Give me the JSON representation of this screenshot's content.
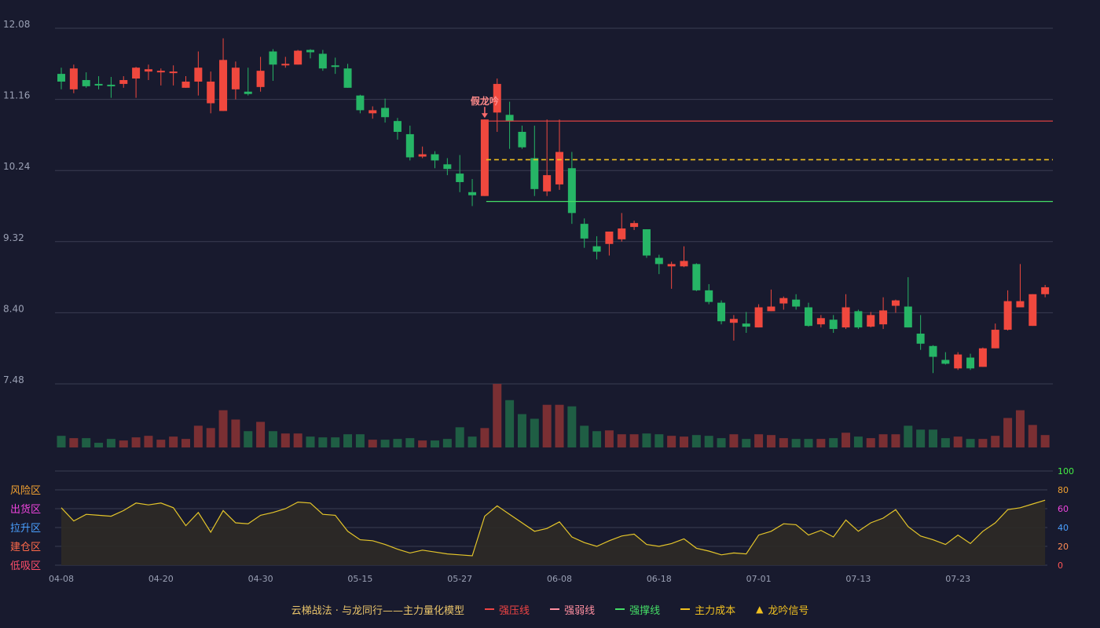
{
  "chart_data": {
    "type": "candlestick",
    "price_axis": {
      "ticks": [
        "12.08",
        "11.16",
        "10.24",
        "9.32",
        "8.40",
        "7.48"
      ],
      "min": 7.48,
      "max": 12.08
    },
    "x_ticks": [
      {
        "index": 0,
        "label": "04-08"
      },
      {
        "index": 8,
        "label": "04-20"
      },
      {
        "index": 16,
        "label": "04-30"
      },
      {
        "index": 24,
        "label": "05-15"
      },
      {
        "index": 32,
        "label": "05-27"
      },
      {
        "index": 40,
        "label": "06-08"
      },
      {
        "index": 48,
        "label": "06-18"
      },
      {
        "index": 56,
        "label": "07-01"
      },
      {
        "index": 64,
        "label": "07-13"
      },
      {
        "index": 72,
        "label": "07-23"
      }
    ],
    "candles": [
      [
        11.49,
        11.39,
        11.57,
        11.29
      ],
      [
        11.29,
        11.56,
        11.61,
        11.24
      ],
      [
        11.41,
        11.33,
        11.51,
        11.31
      ],
      [
        11.36,
        11.34,
        11.46,
        11.29
      ],
      [
        11.35,
        11.33,
        11.45,
        11.18
      ],
      [
        11.36,
        11.41,
        11.46,
        11.31
      ],
      [
        11.43,
        11.57,
        11.58,
        11.18
      ],
      [
        11.52,
        11.55,
        11.61,
        11.41
      ],
      [
        11.52,
        11.53,
        11.56,
        11.34
      ],
      [
        11.5,
        11.52,
        11.6,
        11.34
      ],
      [
        11.31,
        11.39,
        11.46,
        11.31
      ],
      [
        11.39,
        11.57,
        11.78,
        11.21
      ],
      [
        11.11,
        11.39,
        11.52,
        10.98
      ],
      [
        11.01,
        11.67,
        11.95,
        11.01
      ],
      [
        11.29,
        11.57,
        11.65,
        11.16
      ],
      [
        11.26,
        11.23,
        11.57,
        11.21
      ],
      [
        11.32,
        11.53,
        11.71,
        11.26
      ],
      [
        11.78,
        11.61,
        11.81,
        11.4
      ],
      [
        11.61,
        11.62,
        11.71,
        11.57
      ],
      [
        11.61,
        11.79,
        11.8,
        11.61
      ],
      [
        11.8,
        11.77,
        11.81,
        11.69
      ],
      [
        11.75,
        11.56,
        11.8,
        11.53
      ],
      [
        11.6,
        11.59,
        11.7,
        11.49
      ],
      [
        11.56,
        11.31,
        11.62,
        11.31
      ],
      [
        11.21,
        11.02,
        11.22,
        10.98
      ],
      [
        10.98,
        11.02,
        11.07,
        10.91
      ],
      [
        11.05,
        10.93,
        11.17,
        10.86
      ],
      [
        10.88,
        10.74,
        10.92,
        10.64
      ],
      [
        10.71,
        10.41,
        10.82,
        10.37
      ],
      [
        10.42,
        10.45,
        10.55,
        10.4
      ],
      [
        10.45,
        10.37,
        10.49,
        10.27
      ],
      [
        10.32,
        10.26,
        10.4,
        10.18
      ],
      [
        10.2,
        10.09,
        10.44,
        9.96
      ],
      [
        9.96,
        9.92,
        10.13,
        9.78
      ],
      [
        9.91,
        10.9,
        10.9,
        9.91
      ],
      [
        10.99,
        11.36,
        11.43,
        10.74
      ],
      [
        10.96,
        10.88,
        11.13,
        10.52
      ],
      [
        10.74,
        10.54,
        10.82,
        10.52
      ],
      [
        10.4,
        10.0,
        10.82,
        9.91
      ],
      [
        9.97,
        10.18,
        10.9,
        9.91
      ],
      [
        10.06,
        10.48,
        10.9,
        9.99
      ],
      [
        10.27,
        9.69,
        10.48,
        9.55
      ],
      [
        9.55,
        9.36,
        9.62,
        9.24
      ],
      [
        9.26,
        9.19,
        9.39,
        9.09
      ],
      [
        9.29,
        9.45,
        9.45,
        9.14
      ],
      [
        9.35,
        9.49,
        9.69,
        9.32
      ],
      [
        9.51,
        9.56,
        9.59,
        9.47
      ],
      [
        9.48,
        9.14,
        9.48,
        9.11
      ],
      [
        9.11,
        9.03,
        9.15,
        8.9
      ],
      [
        9.0,
        9.03,
        9.06,
        8.71
      ],
      [
        9.0,
        9.07,
        9.26,
        8.99
      ],
      [
        9.03,
        8.69,
        9.04,
        8.68
      ],
      [
        8.69,
        8.54,
        8.77,
        8.51
      ],
      [
        8.53,
        8.29,
        8.56,
        8.25
      ],
      [
        8.27,
        8.32,
        8.37,
        8.04
      ],
      [
        8.26,
        8.22,
        8.41,
        8.14
      ],
      [
        8.21,
        8.47,
        8.51,
        8.21
      ],
      [
        8.42,
        8.48,
        8.7,
        8.42
      ],
      [
        8.52,
        8.59,
        8.61,
        8.44
      ],
      [
        8.57,
        8.48,
        8.64,
        8.44
      ],
      [
        8.47,
        8.23,
        8.53,
        8.22
      ],
      [
        8.25,
        8.33,
        8.37,
        8.21
      ],
      [
        8.31,
        8.19,
        8.37,
        8.14
      ],
      [
        8.21,
        8.47,
        8.64,
        8.19
      ],
      [
        8.42,
        8.21,
        8.44,
        8.19
      ],
      [
        8.22,
        8.37,
        8.41,
        8.21
      ],
      [
        8.25,
        8.43,
        8.6,
        8.19
      ],
      [
        8.49,
        8.56,
        8.57,
        8.4
      ],
      [
        8.48,
        8.21,
        8.86,
        8.21
      ],
      [
        8.13,
        8.0,
        8.37,
        7.92
      ],
      [
        7.97,
        7.83,
        7.98,
        7.62
      ],
      [
        7.79,
        7.74,
        7.89,
        7.73
      ],
      [
        7.68,
        7.86,
        7.89,
        7.66
      ],
      [
        7.82,
        7.68,
        7.87,
        7.66
      ],
      [
        7.7,
        7.94,
        7.95,
        7.7
      ],
      [
        7.94,
        8.18,
        8.26,
        7.94
      ],
      [
        8.18,
        8.55,
        8.69,
        8.17
      ],
      [
        8.47,
        8.55,
        9.03,
        8.47
      ],
      [
        8.23,
        8.64,
        8.64,
        8.23
      ],
      [
        8.64,
        8.73,
        8.76,
        8.6
      ]
    ],
    "volumes": [
      15,
      12,
      12,
      6,
      11,
      9,
      13,
      15,
      10,
      14,
      11,
      28,
      25,
      48,
      36,
      21,
      33,
      21,
      18,
      18,
      14,
      13,
      13,
      17,
      17,
      10,
      10,
      11,
      12,
      9,
      9,
      11,
      26,
      14,
      25,
      82,
      61,
      43,
      37,
      55,
      55,
      53,
      28,
      21,
      22,
      17,
      17,
      18,
      17,
      15,
      14,
      16,
      15,
      12,
      17,
      11,
      17,
      16,
      12,
      11,
      11,
      11,
      12,
      19,
      14,
      12,
      17,
      17,
      28,
      23,
      23,
      12,
      14,
      11,
      11,
      15,
      38,
      48,
      29,
      16
    ],
    "ma_lines": [
      {
        "name": "强压线",
        "value": 10.88,
        "from": 34,
        "color": "#f04444",
        "style": "solid"
      },
      {
        "name": "主力成本",
        "value": 10.38,
        "from": 34,
        "color": "#f0c020",
        "style": "dashed"
      },
      {
        "name": "强撑线",
        "value": 9.84,
        "from": 34,
        "color": "#44dd66",
        "style": "solid"
      }
    ],
    "signal": {
      "index": 34,
      "label": "假龙吟"
    },
    "indicator": {
      "axis": [
        "100",
        "80",
        "60",
        "40",
        "20",
        "0"
      ],
      "zones": [
        "风险区",
        "出货区",
        "拉升区",
        "建仓区",
        "低吸区"
      ],
      "values": [
        61,
        47,
        54,
        53,
        52,
        58,
        66,
        64,
        66,
        61,
        42,
        56,
        35,
        58,
        45,
        44,
        53,
        56,
        60,
        67,
        66,
        54,
        53,
        36,
        27,
        26,
        22,
        17,
        13,
        16,
        14,
        12,
        11,
        10,
        52,
        63,
        54,
        45,
        36,
        39,
        46,
        30,
        24,
        20,
        26,
        31,
        33,
        22,
        20,
        23,
        28,
        18,
        15,
        11,
        13,
        12,
        32,
        36,
        44,
        43,
        32,
        37,
        30,
        48,
        36,
        45,
        50,
        59,
        41,
        31,
        27,
        22,
        32,
        23,
        36,
        45,
        59,
        61,
        65,
        69
      ]
    }
  },
  "legend": {
    "title": "云梯战法 · 与龙同行——主力量化模型",
    "items": [
      {
        "label": "强压线",
        "color": "#f04444",
        "dash": false
      },
      {
        "label": "强弱线",
        "color": "#ff8fa0",
        "dash": true
      },
      {
        "label": "强撑线",
        "color": "#44dd66",
        "dash": false
      },
      {
        "label": "主力成本",
        "color": "#f0c020",
        "dash": true
      },
      {
        "label": "龙吟信号",
        "color": "#f0c020",
        "marker": "▲"
      }
    ]
  },
  "colors": {
    "up": "#f0483e",
    "down": "#26b566",
    "grid": "#3a3d52",
    "axis_text": "#9aa0b4",
    "indicator": "#e4c52a",
    "indicator_fill": "#2d2a26"
  }
}
